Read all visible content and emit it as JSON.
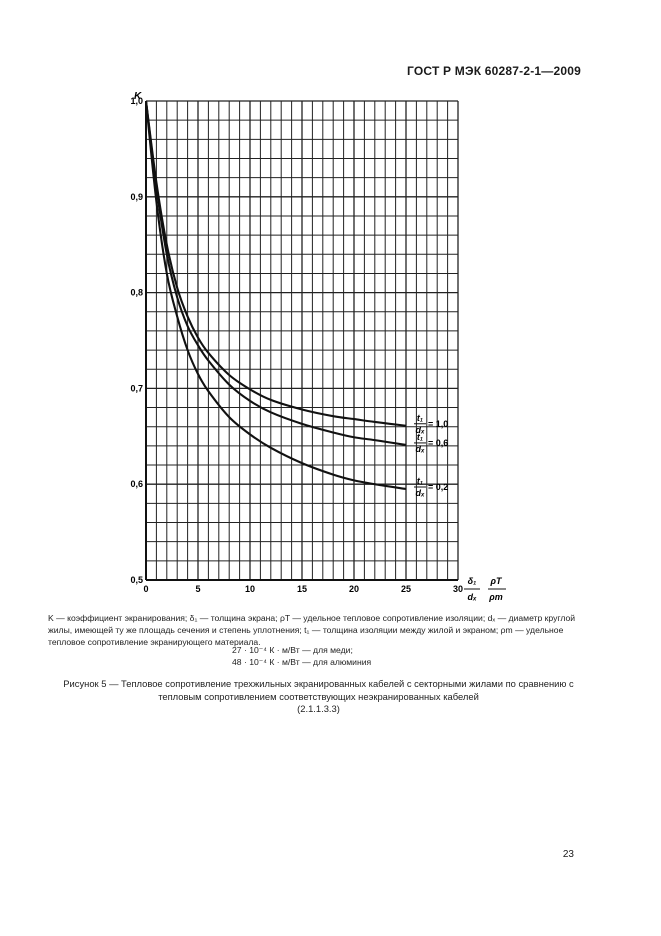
{
  "header": {
    "doc_id": "ГОСТ Р МЭК 60287-2-1—2009"
  },
  "chart_data": {
    "type": "line",
    "ylabel": "K",
    "xlim": [
      0,
      30
    ],
    "ylim": [
      0.5,
      1.0
    ],
    "x_ticks": [
      "0",
      "5",
      "10",
      "15",
      "20",
      "25",
      "30"
    ],
    "y_ticks": [
      "0,5",
      "0,6",
      "0,7",
      "0,8",
      "0,9",
      "1,0"
    ],
    "grid": true,
    "series": [
      {
        "name": "1,0",
        "label_prefix": "t₁/dₓ = ",
        "x": [
          0,
          1,
          2,
          3,
          4,
          5,
          6,
          8,
          10,
          12,
          15,
          18,
          20,
          22,
          25
        ],
        "y": [
          1.0,
          0.915,
          0.85,
          0.805,
          0.775,
          0.753,
          0.737,
          0.714,
          0.699,
          0.688,
          0.678,
          0.671,
          0.668,
          0.665,
          0.661
        ]
      },
      {
        "name": "0,6",
        "label_prefix": "t₁/dₓ = ",
        "x": [
          0,
          1,
          2,
          3,
          4,
          5,
          6,
          8,
          10,
          12,
          15,
          18,
          20,
          22,
          25
        ],
        "y": [
          1.0,
          0.91,
          0.84,
          0.795,
          0.765,
          0.745,
          0.729,
          0.704,
          0.687,
          0.675,
          0.663,
          0.654,
          0.649,
          0.646,
          0.641
        ]
      },
      {
        "name": "0,2",
        "label_prefix": "t₁/dₓ = ",
        "x": [
          0,
          1,
          2,
          3,
          4,
          5,
          6,
          8,
          10,
          12,
          15,
          18,
          20,
          22,
          25
        ],
        "y": [
          1.0,
          0.895,
          0.82,
          0.775,
          0.74,
          0.715,
          0.697,
          0.67,
          0.652,
          0.638,
          0.622,
          0.61,
          0.604,
          0.6,
          0.595
        ]
      }
    ],
    "x_axis_formula": {
      "num1": "δ₁",
      "den1": "dₓ",
      "num2": "ρT",
      "den2": "ρm"
    }
  },
  "captions": {
    "legend_text": "K — коэффициент экранирования; δ₁ — толщина экрана; ρT — удельное тепловое сопротивление изоляции; dₓ — диаметр круглой жилы, имеющей ту же площадь сечения и степень уплотнения; t₁ — толщина изоляции между жилой и экраном; ρm — удельное тепловое сопротивление экранирующего материала.",
    "copper": "27 · 10⁻⁴ К · м/Вт — для меди;",
    "aluminium": "48 · 10⁻⁴ К · м/Вт — для алюминия",
    "figure_title": "Рисунок 5 — Тепловое сопротивление трехжильных экранированных кабелей с секторными жилами по сравнению с тепловым сопротивлением соответствующих неэкранированных кабелей",
    "figure_ref": "(2.1.1.3.3)"
  },
  "page": {
    "number": "23"
  }
}
